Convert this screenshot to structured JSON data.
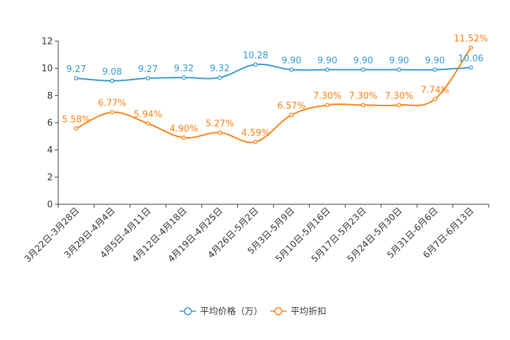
{
  "chart_data": {
    "type": "line",
    "title": "",
    "xlabel": "",
    "ylabel": "",
    "ylim": [
      0,
      12
    ],
    "yticks": [
      0,
      2,
      4,
      6,
      8,
      10,
      12
    ],
    "categories": [
      "3月22日-3月28日",
      "3月29日-4月4日",
      "4月5日-4月11日",
      "4月12日-4月18日",
      "4月19日-4月25日",
      "4月26日-5月2日",
      "5月3日-5月9日",
      "5月10日-5月16日",
      "5月17日-5月23日",
      "5月24日-5月30日",
      "5月31日-6月6日",
      "6月7日-6月13日"
    ],
    "series": [
      {
        "name": "平均价格（万）",
        "color": "#3399cc",
        "values": [
          9.27,
          9.08,
          9.27,
          9.32,
          9.32,
          10.28,
          9.9,
          9.9,
          9.9,
          9.9,
          9.9,
          10.06
        ],
        "labels": [
          "9.27",
          "9.08",
          "9.27",
          "9.32",
          "9.32",
          "10.28",
          "9.90",
          "9.90",
          "9.90",
          "9.90",
          "9.90",
          "10.06"
        ]
      },
      {
        "name": "平均折扣",
        "color": "#ff7f0e",
        "values": [
          5.58,
          6.77,
          5.94,
          4.9,
          5.27,
          4.59,
          6.57,
          7.3,
          7.3,
          7.3,
          7.74,
          11.52
        ],
        "labels": [
          "5.58%",
          "6.77%",
          "5.94%",
          "4.90%",
          "5.27%",
          "4.59%",
          "6.57%",
          "7.30%",
          "7.30%",
          "7.30%",
          "7.74%",
          "11.52%"
        ]
      }
    ],
    "legend_position": "bottom-center",
    "grid": false
  }
}
